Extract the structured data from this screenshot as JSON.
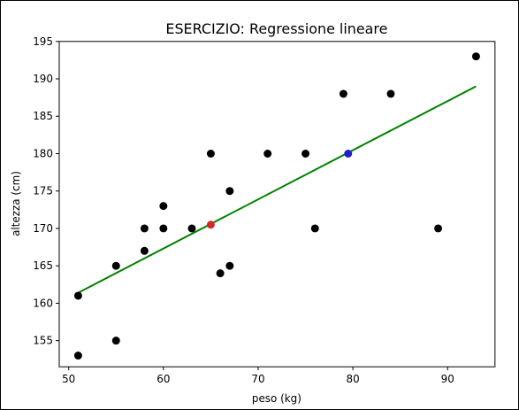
{
  "chart_data": {
    "type": "scatter",
    "title": "ESERCIZIO: Regressione lineare",
    "xlabel": "peso (kg)",
    "ylabel": "altezza (cm)",
    "xlim": [
      49,
      95
    ],
    "ylim": [
      151.5,
      195
    ],
    "xticks": [
      50,
      60,
      70,
      80,
      90
    ],
    "yticks": [
      155,
      160,
      165,
      170,
      175,
      180,
      185,
      190,
      195
    ],
    "grid": false,
    "points": [
      {
        "x": 51,
        "y": 161
      },
      {
        "x": 51,
        "y": 153
      },
      {
        "x": 55,
        "y": 165
      },
      {
        "x": 55,
        "y": 155
      },
      {
        "x": 58,
        "y": 170
      },
      {
        "x": 58,
        "y": 167
      },
      {
        "x": 60,
        "y": 173
      },
      {
        "x": 60,
        "y": 170
      },
      {
        "x": 63,
        "y": 170
      },
      {
        "x": 65,
        "y": 180
      },
      {
        "x": 66,
        "y": 164
      },
      {
        "x": 67,
        "y": 175
      },
      {
        "x": 67,
        "y": 165
      },
      {
        "x": 71,
        "y": 180
      },
      {
        "x": 75,
        "y": 180
      },
      {
        "x": 76,
        "y": 170
      },
      {
        "x": 79,
        "y": 188
      },
      {
        "x": 84,
        "y": 188
      },
      {
        "x": 89,
        "y": 170
      },
      {
        "x": 93,
        "y": 193
      }
    ],
    "point_color": "#000000",
    "regression_line": {
      "x": [
        51,
        93
      ],
      "y": [
        161.4,
        189.0
      ],
      "color": "#008000"
    },
    "highlight_points": [
      {
        "x": 65,
        "y": 170.5,
        "color": "#d62728"
      },
      {
        "x": 79.5,
        "y": 180,
        "color": "#1f1fcc"
      }
    ]
  }
}
